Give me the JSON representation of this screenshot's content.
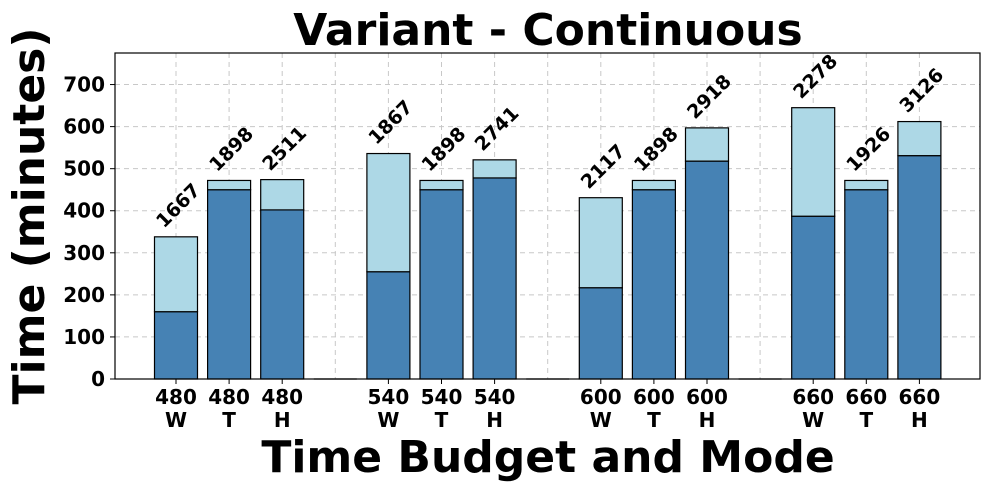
{
  "chart_data": {
    "type": "bar",
    "stacked": true,
    "title": "Variant - Continuous",
    "xlabel": "Time Budget and Mode",
    "ylabel": "Time (minutes)",
    "ylim": [
      0,
      775
    ],
    "yticks": [
      0,
      100,
      200,
      300,
      400,
      500,
      600,
      700
    ],
    "grid": true,
    "colors": {
      "bottom": "#4682b4",
      "top": "#add8e6",
      "edge": "#000000"
    },
    "bars": [
      {
        "budget": "480",
        "mode": "W",
        "bottom": 160,
        "total": 338,
        "label": "1667"
      },
      {
        "budget": "480",
        "mode": "T",
        "bottom": 450,
        "total": 472,
        "label": "1898"
      },
      {
        "budget": "480",
        "mode": "H",
        "bottom": 402,
        "total": 474,
        "label": "2511"
      },
      {
        "gap": true
      },
      {
        "budget": "540",
        "mode": "W",
        "bottom": 255,
        "total": 536,
        "label": "1867"
      },
      {
        "budget": "540",
        "mode": "T",
        "bottom": 450,
        "total": 472,
        "label": "1898"
      },
      {
        "budget": "540",
        "mode": "H",
        "bottom": 478,
        "total": 521,
        "label": "2741"
      },
      {
        "gap": true
      },
      {
        "budget": "600",
        "mode": "W",
        "bottom": 217,
        "total": 431,
        "label": "2117"
      },
      {
        "budget": "600",
        "mode": "T",
        "bottom": 450,
        "total": 472,
        "label": "1898"
      },
      {
        "budget": "600",
        "mode": "H",
        "bottom": 518,
        "total": 597,
        "label": "2918"
      },
      {
        "gap": true
      },
      {
        "budget": "660",
        "mode": "W",
        "bottom": 387,
        "total": 645,
        "label": "2278"
      },
      {
        "budget": "660",
        "mode": "T",
        "bottom": 450,
        "total": 472,
        "label": "1926"
      },
      {
        "budget": "660",
        "mode": "H",
        "bottom": 531,
        "total": 612,
        "label": "3126"
      }
    ]
  }
}
